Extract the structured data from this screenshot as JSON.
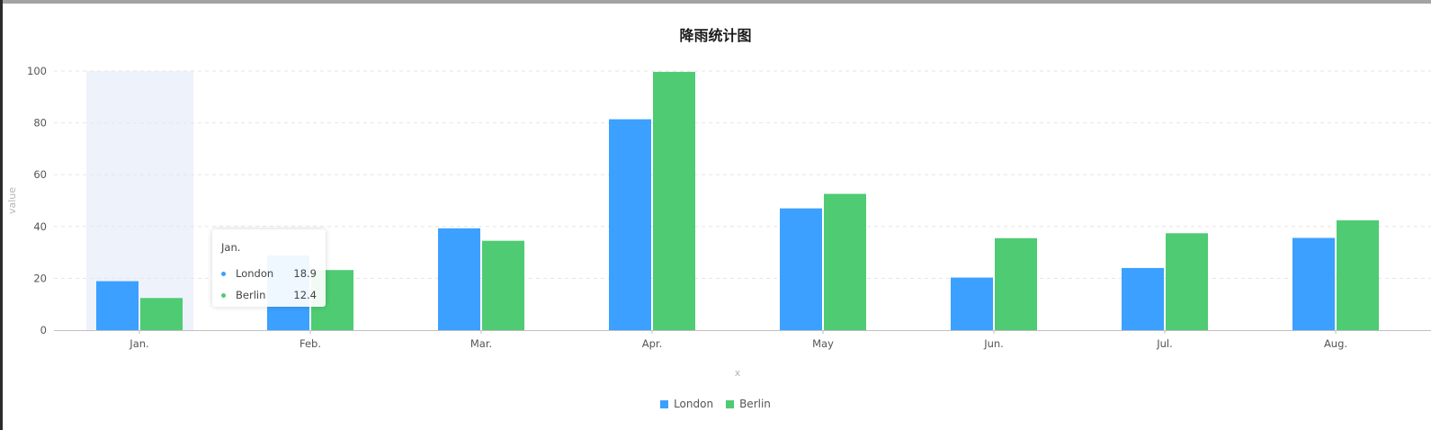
{
  "chart_data": {
    "type": "bar",
    "title": "降雨统计图",
    "xlabel": "x",
    "ylabel": "value",
    "categories": [
      "Jan.",
      "Feb.",
      "Mar.",
      "Apr.",
      "May",
      "Jun.",
      "Jul.",
      "Aug."
    ],
    "series": [
      {
        "name": "London",
        "color": "#3ba0ff",
        "values": [
          18.9,
          28.8,
          39.3,
          81.4,
          47.0,
          20.3,
          24.0,
          35.6
        ]
      },
      {
        "name": "Berlin",
        "color": "#4ecb73",
        "values": [
          12.4,
          23.2,
          34.5,
          99.7,
          52.6,
          35.5,
          37.4,
          42.4
        ]
      }
    ],
    "ylim": [
      0,
      100
    ],
    "yticks": [
      0,
      20,
      40,
      60,
      80,
      100
    ],
    "grid": true,
    "legend_position": "bottom-center"
  },
  "tooltip": {
    "title": "Jan.",
    "rows": [
      {
        "name": "London",
        "value": "18.9",
        "color": "#3ba0ff"
      },
      {
        "name": "Berlin",
        "value": "12.4",
        "color": "#4ecb73"
      }
    ]
  }
}
